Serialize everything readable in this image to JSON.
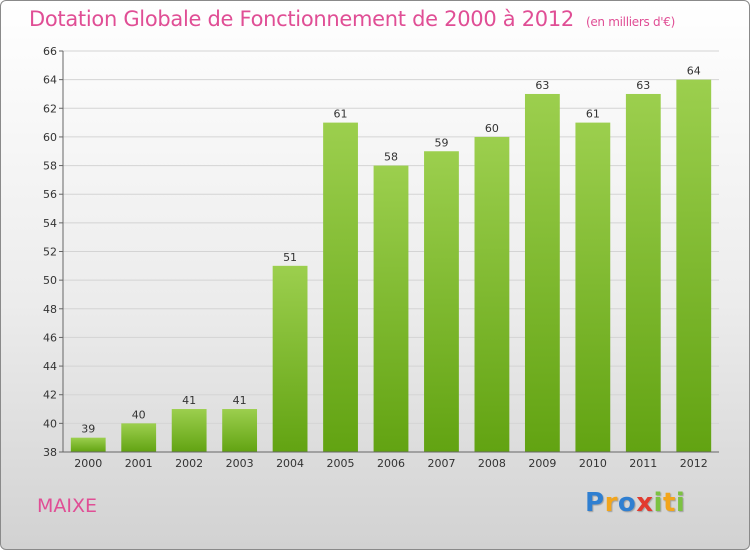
{
  "header": {
    "title": "Dotation Globale de Fonctionnement de 2000 à 2012",
    "subtitle": "(en milliers d'€)"
  },
  "footer": {
    "place": "MAIXE",
    "logo": {
      "text": "Proxiti",
      "letters": [
        {
          "ch": "P",
          "color": "#2f7fd1"
        },
        {
          "ch": "r",
          "color": "#f2a51c"
        },
        {
          "ch": "o",
          "color": "#2f7fd1"
        },
        {
          "ch": "x",
          "color": "#e23b2f"
        },
        {
          "ch": "i",
          "color": "#7cc242"
        },
        {
          "ch": "t",
          "color": "#f2a51c"
        },
        {
          "ch": "i",
          "color": "#7cc242"
        }
      ]
    }
  },
  "chart_data": {
    "type": "bar",
    "title": "Dotation Globale de Fonctionnement de 2000 à 2012",
    "subtitle": "(en milliers d'€)",
    "categories": [
      "2000",
      "2001",
      "2002",
      "2003",
      "2004",
      "2005",
      "2006",
      "2007",
      "2008",
      "2009",
      "2010",
      "2011",
      "2012"
    ],
    "values": [
      39,
      40,
      41,
      41,
      51,
      61,
      58,
      59,
      60,
      63,
      61,
      63,
      64
    ],
    "ylim": [
      38,
      66
    ],
    "ytick_step": 2,
    "grid": true,
    "colors": {
      "bar_top": "#9ccf4e",
      "bar_bottom": "#62a312",
      "grid": "#d4d4d4",
      "axis": "#666666"
    }
  }
}
